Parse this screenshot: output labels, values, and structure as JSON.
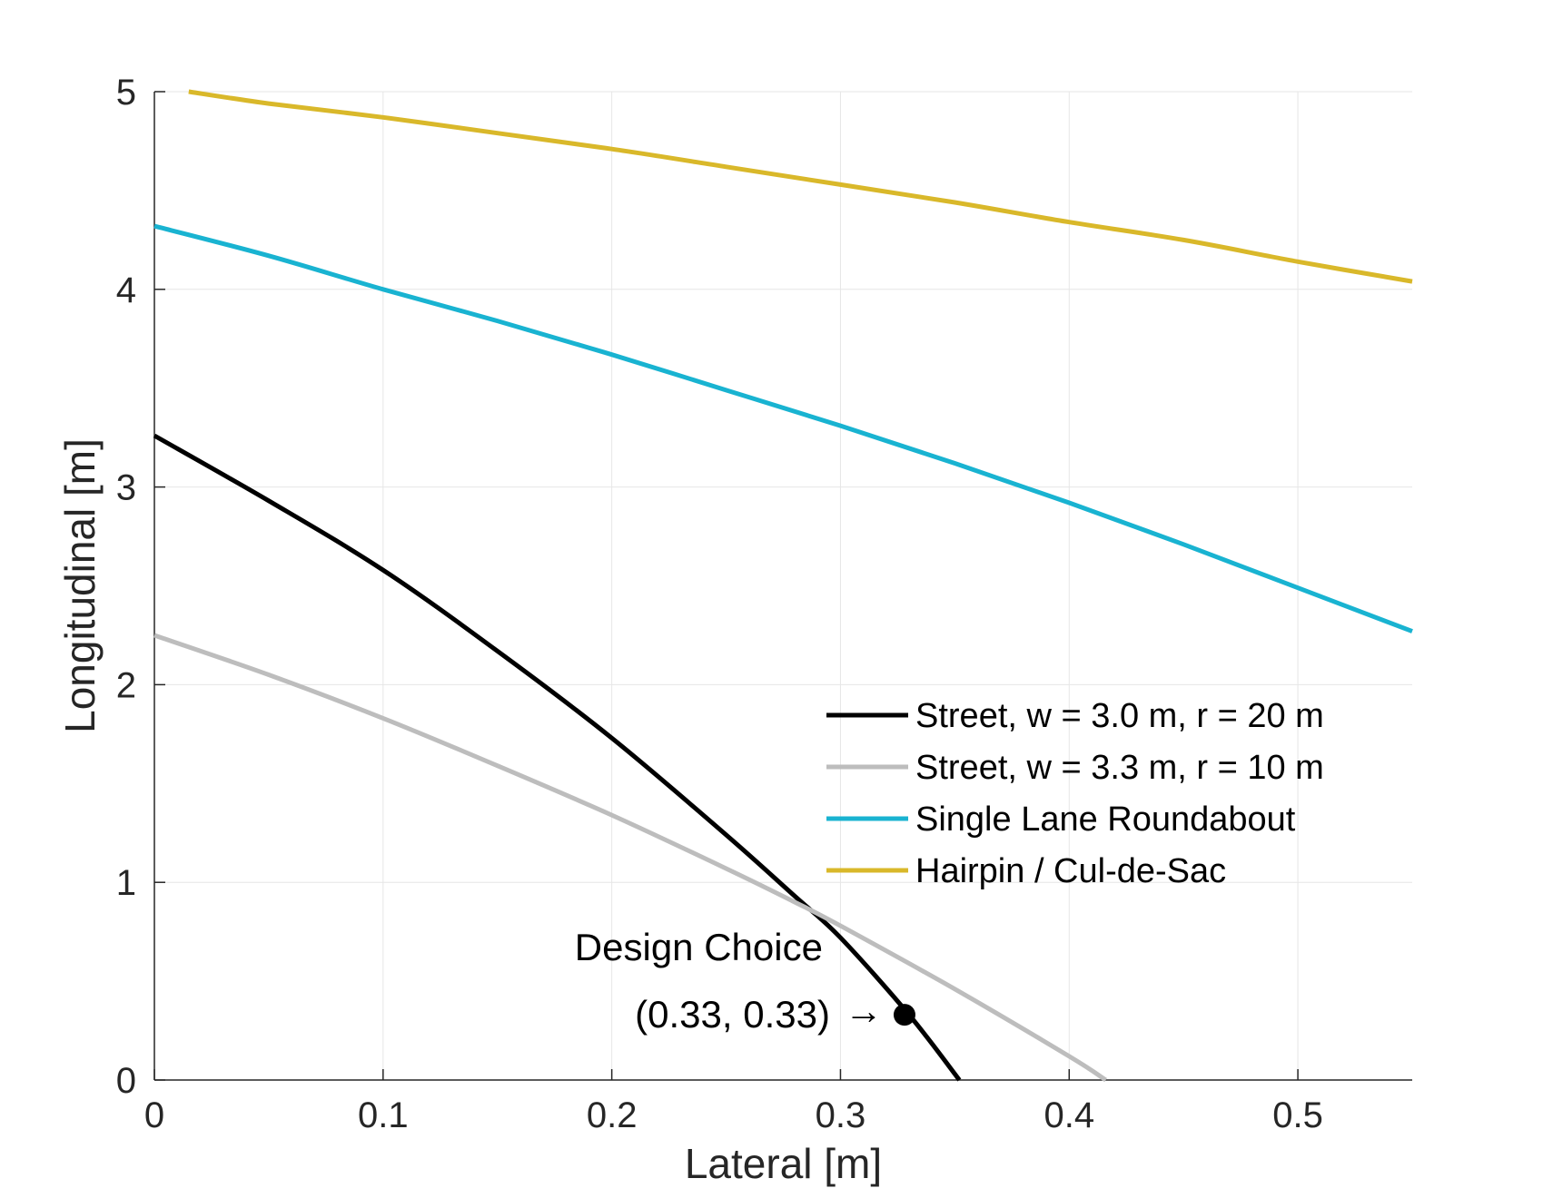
{
  "chart_data": {
    "type": "line",
    "xlabel": "Lateral [m]",
    "ylabel": "Longitudinal [m]",
    "xlim": [
      0,
      0.55
    ],
    "ylim": [
      0,
      5
    ],
    "xticks": [
      0,
      0.1,
      0.2,
      0.3,
      0.4,
      0.5
    ],
    "xtick_labels": [
      "0",
      "0.1",
      "0.2",
      "0.3",
      "0.4",
      "0.5"
    ],
    "yticks": [
      0,
      1,
      2,
      3,
      4,
      5
    ],
    "ytick_labels": [
      "0",
      "1",
      "2",
      "3",
      "4",
      "5"
    ],
    "grid": true,
    "legend_position": "middle-right",
    "series": [
      {
        "name": "Street, w = 3.0 m, r = 20 m",
        "color": "#000000",
        "x": [
          0,
          0.05,
          0.1,
          0.15,
          0.2,
          0.25,
          0.28,
          0.3,
          0.33,
          0.352
        ],
        "y": [
          3.26,
          2.93,
          2.58,
          2.17,
          1.73,
          1.24,
          0.93,
          0.72,
          0.33,
          0
        ]
      },
      {
        "name": "Street, w = 3.3 m, r = 10 m",
        "color": "#bdbdbd",
        "x": [
          0,
          0.05,
          0.1,
          0.15,
          0.2,
          0.25,
          0.28,
          0.3,
          0.35,
          0.4,
          0.416
        ],
        "y": [
          2.25,
          2.05,
          1.83,
          1.59,
          1.34,
          1.07,
          0.9,
          0.78,
          0.46,
          0.12,
          0
        ]
      },
      {
        "name": "Single Lane Roundabout",
        "color": "#19b3d1",
        "x": [
          0,
          0.05,
          0.1,
          0.15,
          0.2,
          0.25,
          0.3,
          0.35,
          0.4,
          0.45,
          0.5,
          0.55
        ],
        "y": [
          4.32,
          4.17,
          4.0,
          3.84,
          3.67,
          3.49,
          3.31,
          3.12,
          2.92,
          2.71,
          2.49,
          2.27
        ]
      },
      {
        "name": "Hairpin / Cul-de-Sac",
        "color": "#d9b82a",
        "x": [
          0.015,
          0.05,
          0.1,
          0.15,
          0.2,
          0.25,
          0.3,
          0.35,
          0.4,
          0.45,
          0.5,
          0.55
        ],
        "y": [
          5.0,
          4.94,
          4.87,
          4.79,
          4.71,
          4.62,
          4.53,
          4.44,
          4.34,
          4.25,
          4.14,
          4.04
        ]
      }
    ],
    "annotations": [
      {
        "line1": "Design Choice",
        "line2": "(0.33, 0.33)",
        "arrow": "→",
        "point": {
          "x": 0.328,
          "y": 0.33
        }
      }
    ]
  }
}
